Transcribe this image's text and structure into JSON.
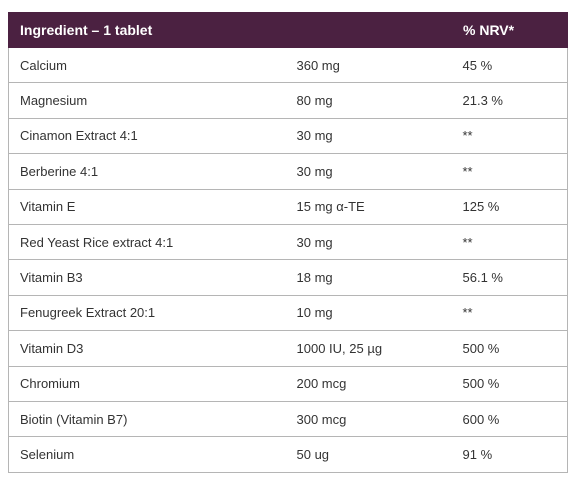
{
  "colors": {
    "header_bg": "#4b2141",
    "header_text": "#ffffff",
    "row_border": "#b5b5b5",
    "text": "#333333"
  },
  "table": {
    "headers": [
      "Ingredient – 1 tablet",
      "",
      "% NRV*"
    ],
    "rows": [
      [
        "Calcium",
        "360 mg",
        "45 %"
      ],
      [
        "Magnesium",
        "80 mg",
        "21.3 %"
      ],
      [
        "Cinamon Extract 4:1",
        "30 mg",
        "**"
      ],
      [
        "Berberine 4:1",
        "30 mg",
        "**"
      ],
      [
        "Vitamin E",
        "15 mg α-TE",
        "125 %"
      ],
      [
        "Red Yeast Rice extract 4:1",
        "30 mg",
        "**"
      ],
      [
        "Vitamin B3",
        "18 mg",
        "56.1 %"
      ],
      [
        "Fenugreek Extract 20:1",
        "10 mg",
        "**"
      ],
      [
        "Vitamin D3",
        "1000 IU, 25 µg",
        "500 %"
      ],
      [
        "Chromium",
        "200 mcg",
        "500 %"
      ],
      [
        "Biotin (Vitamin B7)",
        "300 mcg",
        "600 %"
      ],
      [
        "Selenium",
        "50 ug",
        "91 %"
      ]
    ]
  }
}
